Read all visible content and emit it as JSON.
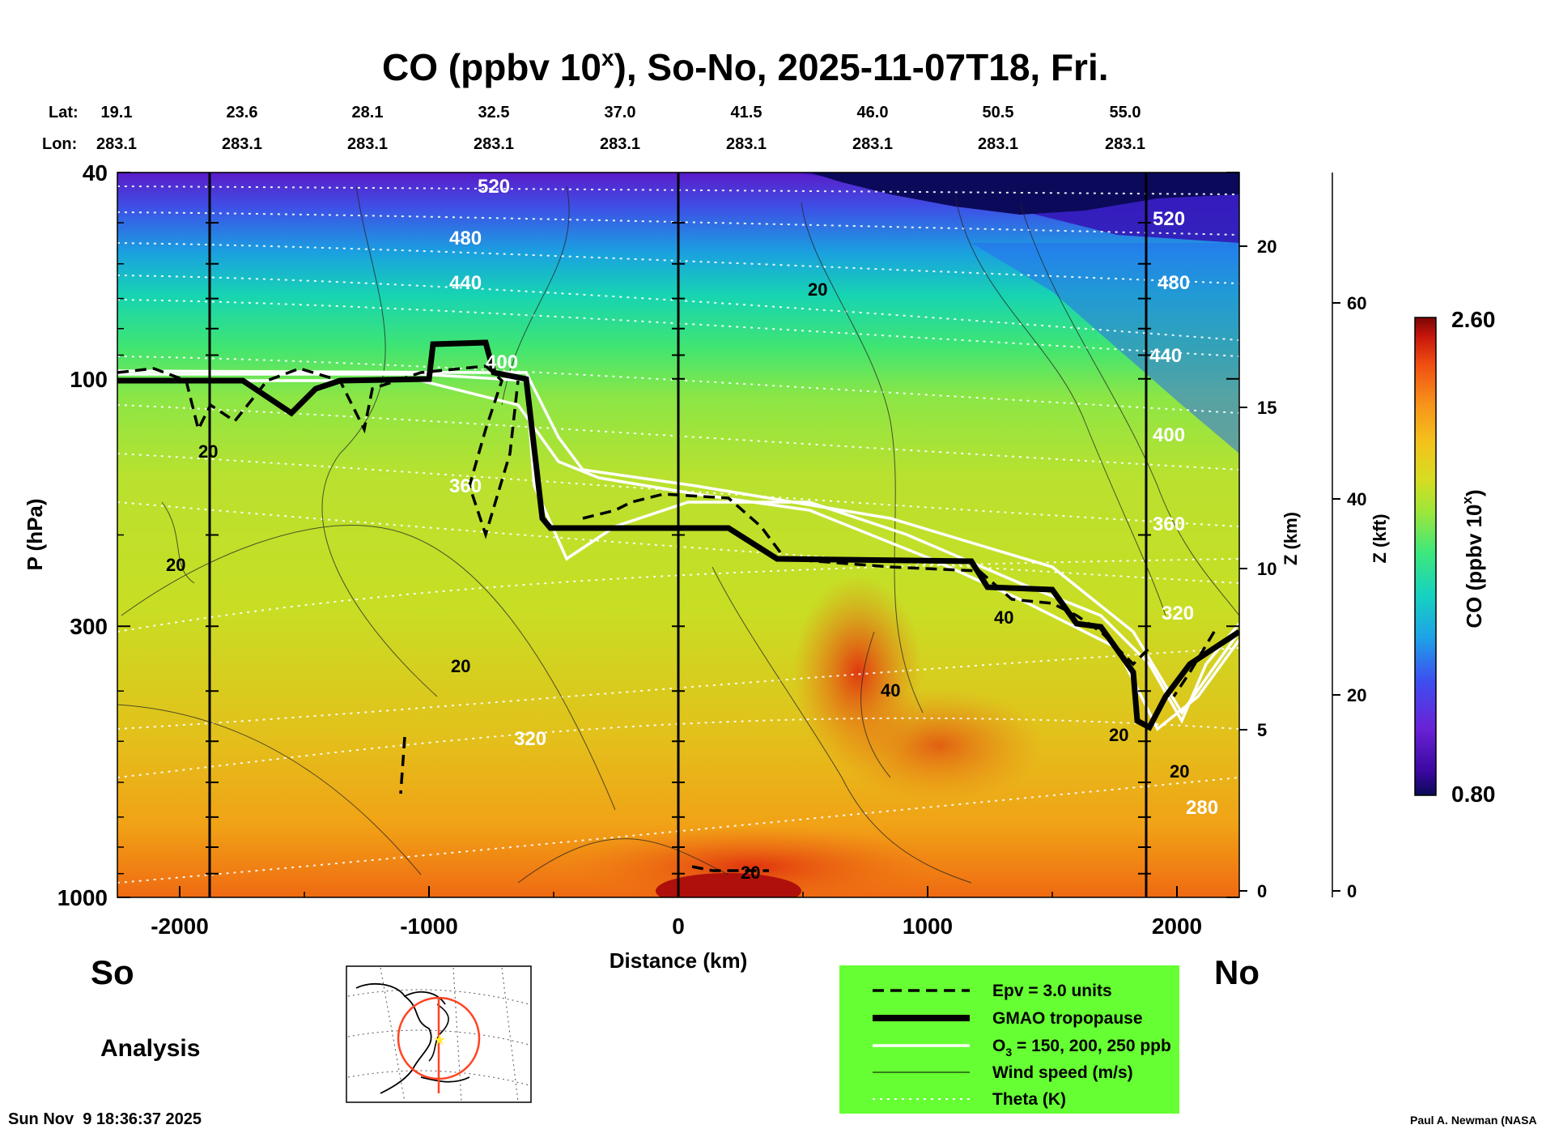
{
  "title": "CO (ppbv 10",
  "title_sup": "x",
  "title_rest": "), So-No, 2025-11-07T18, Fri.",
  "lat_label": "Lat:",
  "lon_label": "Lon:",
  "lats": [
    "19.1",
    "23.6",
    "28.1",
    "32.5",
    "37.0",
    "41.5",
    "46.0",
    "50.5",
    "55.0"
  ],
  "lons": [
    "283.1",
    "283.1",
    "283.1",
    "283.1",
    "283.1",
    "283.1",
    "283.1",
    "283.1",
    "283.1"
  ],
  "left_end": "So",
  "right_end": "No",
  "analysis_label": "Analysis",
  "timestamp": "Sun Nov  9 18:36:37 2025",
  "credit": "Paul A. Newman (NASA",
  "colors": {
    "tropopause": "#000000",
    "ozone": "#ffffff",
    "legend_bg": "#66ff33",
    "map_circle": "#ff4422"
  },
  "legend": {
    "epv": "Epv = 3.0 units",
    "tropopause": "GMAO tropopause",
    "ozone_pre": "O",
    "ozone_sub": "3",
    "ozone_post": " = 150, 200, 250 ppb",
    "wind": "Wind speed (m/s)",
    "theta": "Theta (K)"
  },
  "colorbar": {
    "max_label": "2.60",
    "min_label": "0.80",
    "title": "CO (ppbv 10",
    "title_sup": "x",
    "title_end": ")"
  },
  "chart_data": {
    "type": "heatmap",
    "xlabel": "Distance (km)",
    "ylabel": "P (hPa)",
    "y2label": "Z (km)",
    "y3label": "Z (kft)",
    "xlim": [
      -2250,
      2250
    ],
    "ylim": [
      1000,
      40
    ],
    "y_scale": "log",
    "x_ticks": [
      "-2000",
      "-1000",
      "0",
      "1000",
      "2000"
    ],
    "y_ticks": [
      "40",
      "100",
      "300",
      "1000"
    ],
    "z_km_ticks": [
      "0",
      "5",
      "10",
      "15",
      "20"
    ],
    "z_kft_ticks": [
      "0",
      "20",
      "40",
      "60"
    ],
    "co_range": [
      0.8,
      2.6
    ],
    "vertical_markers_km": [
      -1870,
      0,
      1870
    ],
    "theta_labels": [
      "520",
      "480",
      "440",
      "400",
      "360",
      "320",
      "280"
    ],
    "wind_labels": [
      "20",
      "40"
    ],
    "tropopause_km": {
      "x": [
        -2250,
        -1000,
        -850,
        -650,
        -550,
        -300,
        0,
        300,
        400,
        600,
        800,
        1000,
        1200,
        1300,
        1600,
        1700,
        1800,
        1850,
        1900,
        2000,
        2100,
        2250
      ],
      "hPa": [
        100,
        100,
        88,
        100,
        210,
        210,
        210,
        210,
        235,
        235,
        240,
        240,
        240,
        265,
        265,
        300,
        320,
        390,
        400,
        350,
        310,
        300
      ]
    },
    "colorbar_values": [
      0.8,
      2.6
    ]
  }
}
